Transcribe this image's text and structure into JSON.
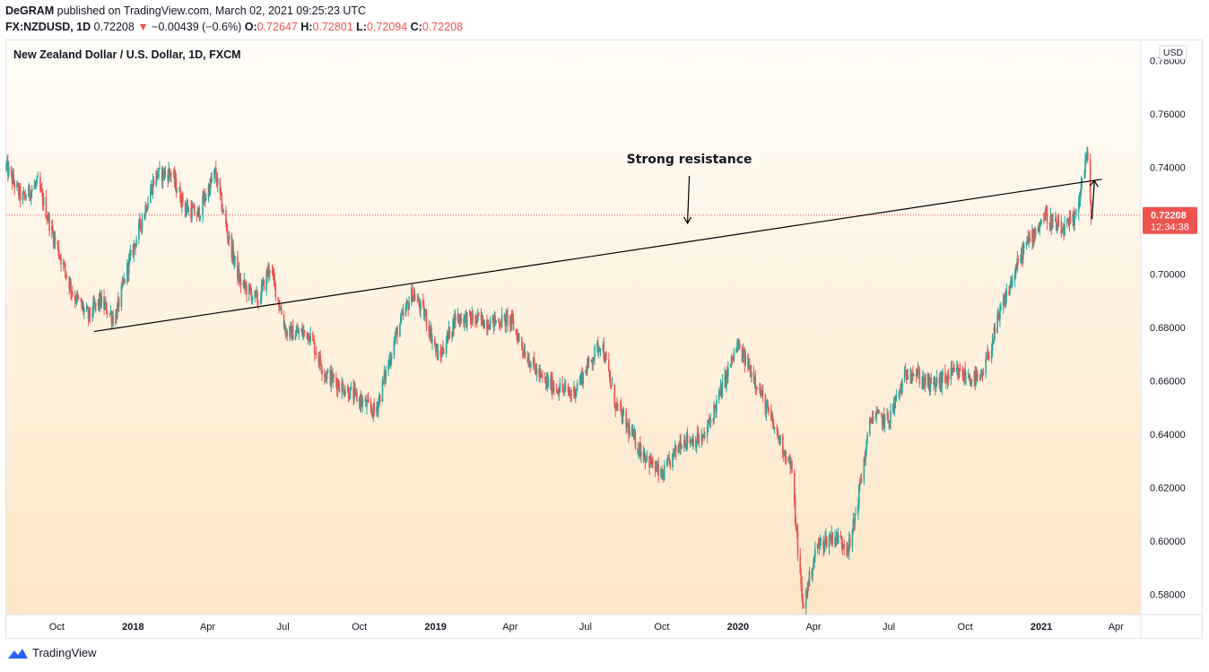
{
  "header": {
    "author": "DeGRAM",
    "published_text": "published on TradingView.com, March 02, 2021 09:25:23 UTC"
  },
  "ohlc": {
    "symbol": "FX:NZDUSD, 1D",
    "last": "0.72208",
    "change_arrow": "▼",
    "change": "−0.00439 (−0.6%)",
    "o_label": "O:",
    "o_value": "0.72647",
    "h_label": "H:",
    "h_value": "0.72801",
    "l_label": "L:",
    "l_value": "0.72094",
    "c_label": "C:",
    "c_value": "0.72208"
  },
  "colors": {
    "up": "#26a69a",
    "down": "#ef5350",
    "price_label_bg": "#ef5350",
    "bg_top": "#fffdf8",
    "bg_bottom": "#fde6c6"
  },
  "footer": {
    "brand": "TradingView",
    "icon": "tradingview-logo-icon"
  },
  "chart_data": {
    "type": "candlestick",
    "title": "New Zealand Dollar / U.S. Dollar, 1D, FXCM",
    "currency_badge": "USD",
    "ylim": [
      0.5725,
      0.7875
    ],
    "y_ticks": [
      "0.78000",
      "0.76000",
      "0.74000",
      "0.70000",
      "0.68000",
      "0.66000",
      "0.64000",
      "0.62000",
      "0.60000",
      "0.58000"
    ],
    "x_ticks": [
      {
        "label": "Oct",
        "date": "2017-10",
        "bold": false
      },
      {
        "label": "2018",
        "date": "2018-01",
        "bold": true
      },
      {
        "label": "Apr",
        "date": "2018-04",
        "bold": false
      },
      {
        "label": "Jul",
        "date": "2018-07",
        "bold": false
      },
      {
        "label": "Oct",
        "date": "2018-10",
        "bold": false
      },
      {
        "label": "2019",
        "date": "2019-01",
        "bold": true
      },
      {
        "label": "Apr",
        "date": "2019-04",
        "bold": false
      },
      {
        "label": "Jul",
        "date": "2019-07",
        "bold": false
      },
      {
        "label": "Oct",
        "date": "2019-10",
        "bold": false
      },
      {
        "label": "2020",
        "date": "2020-01",
        "bold": true
      },
      {
        "label": "Apr",
        "date": "2020-04",
        "bold": false
      },
      {
        "label": "Jul",
        "date": "2020-07",
        "bold": false
      },
      {
        "label": "Oct",
        "date": "2020-10",
        "bold": false
      },
      {
        "label": "2021",
        "date": "2021-01",
        "bold": true
      },
      {
        "label": "Apr",
        "date": "2021-04",
        "bold": false
      }
    ],
    "price_path": [
      {
        "date": "2017-08-01",
        "price": 0.74
      },
      {
        "date": "2017-08-20",
        "price": 0.728
      },
      {
        "date": "2017-09-08",
        "price": 0.734
      },
      {
        "date": "2017-09-25",
        "price": 0.716
      },
      {
        "date": "2017-10-20",
        "price": 0.693
      },
      {
        "date": "2017-11-08",
        "price": 0.684
      },
      {
        "date": "2017-11-22",
        "price": 0.69
      },
      {
        "date": "2017-12-10",
        "price": 0.683
      },
      {
        "date": "2017-12-25",
        "price": 0.702
      },
      {
        "date": "2018-01-15",
        "price": 0.724
      },
      {
        "date": "2018-01-28",
        "price": 0.737
      },
      {
        "date": "2018-02-15",
        "price": 0.738
      },
      {
        "date": "2018-03-05",
        "price": 0.725
      },
      {
        "date": "2018-03-20",
        "price": 0.722
      },
      {
        "date": "2018-04-10",
        "price": 0.738
      },
      {
        "date": "2018-04-25",
        "price": 0.715
      },
      {
        "date": "2018-05-10",
        "price": 0.697
      },
      {
        "date": "2018-06-01",
        "price": 0.69
      },
      {
        "date": "2018-06-15",
        "price": 0.703
      },
      {
        "date": "2018-07-05",
        "price": 0.678
      },
      {
        "date": "2018-08-01",
        "price": 0.678
      },
      {
        "date": "2018-08-20",
        "price": 0.663
      },
      {
        "date": "2018-09-10",
        "price": 0.658
      },
      {
        "date": "2018-10-05",
        "price": 0.652
      },
      {
        "date": "2018-10-20",
        "price": 0.648
      },
      {
        "date": "2018-11-15",
        "price": 0.678
      },
      {
        "date": "2018-12-04",
        "price": 0.693
      },
      {
        "date": "2018-12-20",
        "price": 0.684
      },
      {
        "date": "2019-01-05",
        "price": 0.668
      },
      {
        "date": "2019-01-25",
        "price": 0.684
      },
      {
        "date": "2019-02-15",
        "price": 0.683
      },
      {
        "date": "2019-03-10",
        "price": 0.682
      },
      {
        "date": "2019-04-01",
        "price": 0.683
      },
      {
        "date": "2019-04-20",
        "price": 0.67
      },
      {
        "date": "2019-05-10",
        "price": 0.66
      },
      {
        "date": "2019-06-15",
        "price": 0.655
      },
      {
        "date": "2019-07-20",
        "price": 0.675
      },
      {
        "date": "2019-08-05",
        "price": 0.652
      },
      {
        "date": "2019-09-01",
        "price": 0.636
      },
      {
        "date": "2019-10-01",
        "price": 0.624
      },
      {
        "date": "2019-10-25",
        "price": 0.638
      },
      {
        "date": "2019-11-20",
        "price": 0.638
      },
      {
        "date": "2019-12-10",
        "price": 0.655
      },
      {
        "date": "2019-12-31",
        "price": 0.673
      },
      {
        "date": "2020-01-20",
        "price": 0.662
      },
      {
        "date": "2020-02-10",
        "price": 0.645
      },
      {
        "date": "2020-03-05",
        "price": 0.628
      },
      {
        "date": "2020-03-19",
        "price": 0.575
      },
      {
        "date": "2020-04-05",
        "price": 0.598
      },
      {
        "date": "2020-04-25",
        "price": 0.602
      },
      {
        "date": "2020-05-15",
        "price": 0.598
      },
      {
        "date": "2020-06-10",
        "price": 0.647
      },
      {
        "date": "2020-06-30",
        "price": 0.645
      },
      {
        "date": "2020-07-25",
        "price": 0.665
      },
      {
        "date": "2020-08-20",
        "price": 0.658
      },
      {
        "date": "2020-09-20",
        "price": 0.663
      },
      {
        "date": "2020-10-20",
        "price": 0.66
      },
      {
        "date": "2020-11-15",
        "price": 0.688
      },
      {
        "date": "2020-12-10",
        "price": 0.709
      },
      {
        "date": "2021-01-05",
        "price": 0.722
      },
      {
        "date": "2021-01-25",
        "price": 0.716
      },
      {
        "date": "2021-02-10",
        "price": 0.72
      },
      {
        "date": "2021-02-25",
        "price": 0.745
      },
      {
        "date": "2021-03-02",
        "price": 0.722
      }
    ],
    "current_price": {
      "value": 0.72208,
      "label": "0.72208",
      "countdown": "12:34:38"
    },
    "trendline": {
      "start": {
        "date": "2017-11-15",
        "price": 0.6785
      },
      "end": {
        "date": "2021-03-15",
        "price": 0.7355
      }
    },
    "annotation": {
      "text": "Strong resistance",
      "arrow_tip": {
        "date": "2019-11-01",
        "price": 0.719
      }
    },
    "breakout_arrow": {
      "from": {
        "date": "2021-03-03",
        "price": 0.7205
      },
      "to": {
        "date": "2021-03-06",
        "price": 0.735
      }
    }
  }
}
